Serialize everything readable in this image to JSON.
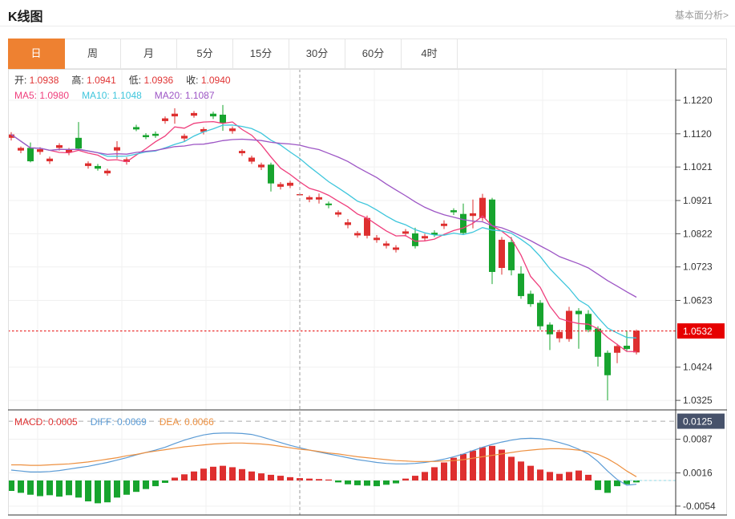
{
  "header": {
    "title": "K线图",
    "link": "基本面分析>"
  },
  "tabs": {
    "items": [
      "日",
      "周",
      "月",
      "5分",
      "15分",
      "30分",
      "60分",
      "4时"
    ],
    "selected_index": 0,
    "selected_color": "#ee8131"
  },
  "legend_ohlc": {
    "label_color": "#333333",
    "value_color": "#e03434",
    "items": [
      [
        "开:",
        "1.0938"
      ],
      [
        "高:",
        "1.0941"
      ],
      [
        "低:",
        "1.0936"
      ],
      [
        "收:",
        "1.0940"
      ]
    ]
  },
  "legend_ma": {
    "items": [
      [
        "MA5:",
        "1.0980",
        "#ef3e7c"
      ],
      [
        "MA10:",
        "1.1048",
        "#3ec6dc"
      ],
      [
        "MA20:",
        "1.1087",
        "#9d56c5"
      ]
    ]
  },
  "legend_macd": {
    "items": [
      [
        "MACD:",
        "0.0005",
        "#e03434"
      ],
      [
        "DIFF:",
        "0.0069",
        "#5b9bd5"
      ],
      [
        "DEA:",
        "0.0066",
        "#ed9040"
      ]
    ]
  },
  "chart_data": {
    "type": "candlestick",
    "panels": [
      "price with MA5/MA10/MA20",
      "MACD histogram with DIFF/DEA"
    ],
    "period_selected": "日",
    "y_axis": {
      "ticks": [
        1.122,
        1.112,
        1.1021,
        1.0921,
        1.0822,
        1.0723,
        1.0623,
        1.0424,
        1.0325
      ],
      "current_price": 1.0532
    },
    "macd_axis": {
      "ticks": [
        0.0087,
        0.0016,
        -0.0054
      ],
      "top_value": 0.0125
    },
    "crosshair_index": 30,
    "ohlc_at_crosshair": {
      "open": 1.0938,
      "high": 1.0941,
      "low": 1.0936,
      "close": 1.094
    },
    "ma_at_crosshair": {
      "ma5": 1.098,
      "ma10": 1.1048,
      "ma20": 1.1087
    },
    "macd_at_crosshair": {
      "macd": 0.0005,
      "diff": 0.0069,
      "dea": 0.0066
    },
    "candles": [
      [
        1.1108,
        1.1125,
        1.11,
        1.1118
      ],
      [
        1.107,
        1.1082,
        1.1062,
        1.1078
      ],
      [
        1.1078,
        1.1094,
        1.1035,
        1.1038
      ],
      [
        1.1066,
        1.108,
        1.1058,
        1.1074
      ],
      [
        1.1038,
        1.1052,
        1.103,
        1.1046
      ],
      [
        1.1078,
        1.1092,
        1.107,
        1.1086
      ],
      [
        1.1064,
        1.1078,
        1.1056,
        1.1072
      ],
      [
        1.1108,
        1.1155,
        1.1072,
        1.1076
      ],
      [
        1.1024,
        1.1038,
        1.1016,
        1.1032
      ],
      [
        1.1024,
        1.103,
        1.101,
        1.1016
      ],
      [
        1.1002,
        1.1016,
        1.0995,
        1.101
      ],
      [
        1.107,
        1.1098,
        1.1046,
        1.108
      ],
      [
        1.1036,
        1.105,
        1.1028,
        1.1044
      ],
      [
        1.114,
        1.1147,
        1.1128,
        1.1133
      ],
      [
        1.1116,
        1.1122,
        1.1104,
        1.111
      ],
      [
        1.112,
        1.1127,
        1.1108,
        1.1114
      ],
      [
        1.1158,
        1.1172,
        1.115,
        1.1166
      ],
      [
        1.1172,
        1.1196,
        1.115,
        1.118
      ],
      [
        1.1106,
        1.112,
        1.1098,
        1.1114
      ],
      [
        1.1174,
        1.1188,
        1.1168,
        1.1182
      ],
      [
        1.1126,
        1.114,
        1.1118,
        1.1134
      ],
      [
        1.118,
        1.1186,
        1.1164,
        1.1172
      ],
      [
        1.1177,
        1.1206,
        1.1129,
        1.1153
      ],
      [
        1.1128,
        1.1142,
        1.112,
        1.1136
      ],
      [
        1.1062,
        1.1074,
        1.1054,
        1.1069
      ],
      [
        1.1037,
        1.1055,
        1.103,
        1.1049
      ],
      [
        1.102,
        1.1034,
        1.1012,
        1.1028
      ],
      [
        1.1028,
        1.1034,
        1.0948,
        1.0972
      ],
      [
        1.0962,
        1.0976,
        1.0954,
        1.097
      ],
      [
        1.0965,
        1.098,
        1.0958,
        1.0974
      ],
      [
        1.0938,
        1.0941,
        1.0936,
        1.094
      ],
      [
        1.0924,
        1.0936,
        1.0916,
        1.0931
      ],
      [
        1.0924,
        1.0942,
        1.0912,
        1.0931
      ],
      [
        1.0912,
        1.0918,
        1.0898,
        1.0907
      ],
      [
        1.0879,
        1.0892,
        1.0872,
        1.0886
      ],
      [
        1.0848,
        1.0866,
        1.0838,
        1.0856
      ],
      [
        1.0817,
        1.083,
        1.081,
        1.0824
      ],
      [
        1.0816,
        1.0876,
        1.0808,
        1.0869
      ],
      [
        1.0803,
        1.0818,
        1.0795,
        1.081
      ],
      [
        1.0786,
        1.08,
        1.0778,
        1.0793
      ],
      [
        1.0774,
        1.0788,
        1.0766,
        1.0781
      ],
      [
        1.0822,
        1.0836,
        1.0814,
        1.0829
      ],
      [
        1.0823,
        1.084,
        1.0778,
        1.0785
      ],
      [
        1.0808,
        1.0822,
        1.08,
        1.0815
      ],
      [
        1.0825,
        1.0832,
        1.0812,
        1.0819
      ],
      [
        1.0845,
        1.0862,
        1.0836,
        1.0852
      ],
      [
        1.0892,
        1.0898,
        1.0878,
        1.0886
      ],
      [
        1.0881,
        1.0912,
        1.0818,
        1.0824
      ],
      [
        1.0875,
        1.0924,
        1.0838,
        1.0883
      ],
      [
        1.0869,
        1.0941,
        1.086,
        1.0929
      ],
      [
        1.0924,
        1.0929,
        1.0672,
        1.0708
      ],
      [
        1.072,
        1.0812,
        1.07,
        1.0804
      ],
      [
        1.0797,
        1.0812,
        1.0698,
        1.0713
      ],
      [
        1.0703,
        1.0725,
        1.0628,
        1.0636
      ],
      [
        1.0643,
        1.0652,
        1.0604,
        1.0612
      ],
      [
        1.0616,
        1.0624,
        1.0535,
        1.0546
      ],
      [
        1.0551,
        1.0558,
        1.0475,
        1.0522
      ],
      [
        1.051,
        1.0536,
        1.0498,
        1.0529
      ],
      [
        1.0508,
        1.0604,
        1.05,
        1.0592
      ],
      [
        1.0592,
        1.06,
        1.0479,
        1.0582
      ],
      [
        1.0583,
        1.0594,
        1.0528,
        1.0535
      ],
      [
        1.0539,
        1.0546,
        1.0426,
        1.0455
      ],
      [
        1.0467,
        1.0474,
        1.0325,
        1.04
      ],
      [
        1.0467,
        1.0494,
        1.0436,
        1.0487
      ],
      [
        1.0488,
        1.0533,
        1.0472,
        1.0478
      ],
      [
        1.0468,
        1.0536,
        1.0462,
        1.0532
      ]
    ],
    "ma_windows": [
      5,
      10,
      20
    ],
    "macd": {
      "hist": [
        -0.0022,
        -0.0026,
        -0.003,
        -0.0033,
        -0.0031,
        -0.0034,
        -0.0031,
        -0.0036,
        -0.0044,
        -0.0048,
        -0.0046,
        -0.0036,
        -0.003,
        -0.0024,
        -0.0018,
        -0.0012,
        -0.0005,
        0.0006,
        0.0013,
        0.0019,
        0.0025,
        0.0029,
        0.0031,
        0.0028,
        0.0024,
        0.0019,
        0.0015,
        0.0012,
        0.001,
        0.0007,
        0.0005,
        0.0004,
        0.0003,
        0.0002,
        -0.0004,
        -0.0008,
        -0.001,
        -0.0011,
        -0.0012,
        -0.0009,
        -0.0006,
        0.0004,
        0.001,
        0.0018,
        0.0028,
        0.0038,
        0.0048,
        0.0056,
        0.0063,
        0.007,
        0.0073,
        0.0065,
        0.005,
        0.004,
        0.0031,
        0.0023,
        0.0018,
        0.0014,
        0.0018,
        0.0021,
        0.0012,
        -0.002,
        -0.0026,
        -0.0012,
        -0.0008,
        -0.0004
      ],
      "diff": [
        0.0022,
        0.002,
        0.0018,
        0.0018,
        0.0019,
        0.0021,
        0.0024,
        0.0027,
        0.003,
        0.0034,
        0.0038,
        0.0043,
        0.0048,
        0.0054,
        0.0059,
        0.0064,
        0.007,
        0.0078,
        0.0085,
        0.0091,
        0.0096,
        0.0099,
        0.01,
        0.01,
        0.0099,
        0.0097,
        0.0092,
        0.0086,
        0.008,
        0.0074,
        0.0069,
        0.0064,
        0.006,
        0.0056,
        0.0052,
        0.0048,
        0.0044,
        0.0041,
        0.0038,
        0.0036,
        0.0035,
        0.0035,
        0.0036,
        0.0038,
        0.0041,
        0.0045,
        0.005,
        0.0056,
        0.0063,
        0.007,
        0.0076,
        0.0081,
        0.0085,
        0.0088,
        0.0089,
        0.0088,
        0.0085,
        0.008,
        0.0074,
        0.0066,
        0.0056,
        0.004,
        0.002,
        0.0002,
        -0.001,
        -0.0008
      ],
      "dea": [
        0.0033,
        0.0033,
        0.0032,
        0.0032,
        0.0033,
        0.0034,
        0.0035,
        0.0037,
        0.0039,
        0.0042,
        0.0045,
        0.0048,
        0.0052,
        0.0055,
        0.0059,
        0.0062,
        0.0065,
        0.0068,
        0.0071,
        0.0073,
        0.0075,
        0.0077,
        0.0078,
        0.0079,
        0.0079,
        0.0078,
        0.0077,
        0.0075,
        0.0072,
        0.0069,
        0.0066,
        0.0064,
        0.0061,
        0.0058,
        0.0056,
        0.0053,
        0.005,
        0.0048,
        0.0046,
        0.0044,
        0.0042,
        0.0041,
        0.004,
        0.004,
        0.004,
        0.0041,
        0.0042,
        0.0044,
        0.0047,
        0.005,
        0.0053,
        0.0056,
        0.0059,
        0.0062,
        0.0064,
        0.0066,
        0.0067,
        0.0067,
        0.0066,
        0.0064,
        0.0061,
        0.0055,
        0.0046,
        0.0034,
        0.002,
        0.0008
      ]
    },
    "colors": {
      "up": "#de2f2f",
      "down": "#17a42e",
      "ma5": "#ef3e7c",
      "ma10": "#3ec6dc",
      "ma20": "#9d56c5",
      "diff": "#5b9bd5",
      "dea": "#ed9040",
      "current_line": "#e60000",
      "current_badge_bg": "#e60000",
      "macd_badge_bg": "#47526b",
      "crosshair": "#999999",
      "grid": "#f0f0f0",
      "border_dark": "#333333",
      "border_light": "#e0e0e0"
    }
  }
}
